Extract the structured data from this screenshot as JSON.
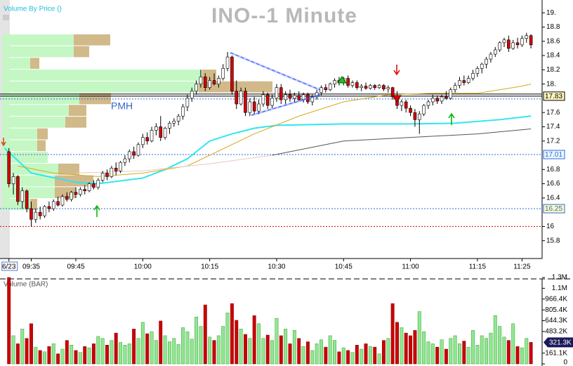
{
  "chart_data": [
    {
      "type": "candlestick",
      "title": "INO--1 Minute",
      "indicator_label": "Volume By Price ()",
      "annotation": "PMH",
      "up_color": "#ffffff",
      "down_color": "#d40000",
      "xlim": [
        -2,
        119.5
      ],
      "ylim": [
        15.55,
        19.18
      ],
      "xticks": [
        {
          "value": 0,
          "label": "6/23"
        },
        {
          "value": 5,
          "label": "09:35"
        },
        {
          "value": 15,
          "label": "09:45"
        },
        {
          "value": 30,
          "label": "10:00"
        },
        {
          "value": 45,
          "label": "10:15"
        },
        {
          "value": 60,
          "label": "10:30"
        },
        {
          "value": 75,
          "label": "10:45"
        },
        {
          "value": 90,
          "label": "11:00"
        },
        {
          "value": 105,
          "label": "11:15"
        },
        {
          "value": 115,
          "label": "11:25"
        }
      ],
      "yticks": [
        {
          "value": 19,
          "label": "19."
        },
        18.8,
        18.6,
        18.4,
        18.2,
        {
          "value": 18,
          "label": "18."
        },
        17.6,
        17.4,
        17.2,
        16.8,
        16.6,
        16.4,
        16,
        15.8
      ],
      "levels": [
        {
          "value": 17.83,
          "label": "17.83",
          "color": "#000000",
          "dash": "none",
          "fill": "#fff8c0"
        },
        {
          "value": 17.86,
          "color": "#000000",
          "dash": "none"
        },
        {
          "value": 17.79,
          "color": "#2a6fd6",
          "dash": "2,2"
        },
        {
          "value": 17.01,
          "label": "17.01",
          "color": "#2a6fd6",
          "dash": "2,2",
          "fill": "#eef4ff"
        },
        {
          "value": 16.25,
          "label": "16.25",
          "color": "#2a6fd6",
          "dash": "2,2",
          "fill": "#fff8c0"
        },
        {
          "value": 16.0,
          "color": "#d40000",
          "dash": "2,2"
        }
      ],
      "volume_by_price": {
        "levels": [
          18.62,
          18.455,
          18.29,
          18.125,
          17.96,
          17.795,
          17.63,
          17.465,
          17.3,
          17.135,
          16.97,
          16.805,
          16.64,
          16.475,
          16.31
        ],
        "up": [
          102,
          102,
          40,
          285,
          280,
          110,
          95,
          90,
          50,
          50,
          65,
          80,
          75,
          75,
          40
        ],
        "down": [
          52,
          22,
          13,
          20,
          105,
          45,
          25,
          30,
          15,
          12,
          0,
          30,
          55,
          30,
          10
        ],
        "up_color": "#c4f7c4",
        "down_color": "#d2b98a"
      },
      "lines": [
        {
          "color": "#2ee6f0",
          "width": 2,
          "x": [
            -1,
            5,
            15,
            20,
            30,
            35,
            40,
            45,
            50,
            55,
            60,
            75,
            90,
            100,
            110,
            117
          ],
          "values": [
            17.1,
            16.75,
            16.62,
            16.6,
            16.68,
            16.8,
            16.95,
            17.2,
            17.3,
            17.38,
            17.42,
            17.44,
            17.44,
            17.45,
            17.5,
            17.55
          ]
        },
        {
          "color": "#d4aa20",
          "width": 1,
          "x": [
            2,
            10,
            20,
            30,
            40,
            45,
            55,
            65,
            75,
            85,
            95,
            105,
            115,
            117
          ],
          "values": [
            16.85,
            16.75,
            16.7,
            16.75,
            16.85,
            17.0,
            17.3,
            17.55,
            17.75,
            17.85,
            17.87,
            17.87,
            17.97,
            18.0
          ]
        },
        {
          "color": "#555555",
          "width": 1,
          "x": [
            59,
            75,
            90,
            105,
            117
          ],
          "values": [
            17.0,
            17.2,
            17.25,
            17.3,
            17.37
          ]
        },
        {
          "color": "#e8c8c0",
          "width": 1,
          "x": [
            15,
            30,
            45,
            59
          ],
          "values": [
            16.75,
            16.78,
            16.88,
            17.0
          ]
        }
      ],
      "x": [
        0,
        1,
        2,
        3,
        4,
        5,
        6,
        7,
        8,
        9,
        10,
        11,
        12,
        13,
        14,
        15,
        16,
        17,
        18,
        19,
        20,
        21,
        22,
        23,
        24,
        25,
        26,
        27,
        28,
        29,
        30,
        31,
        32,
        33,
        34,
        35,
        36,
        37,
        38,
        39,
        40,
        41,
        42,
        43,
        44,
        45,
        46,
        47,
        48,
        49,
        50,
        51,
        52,
        53,
        54,
        55,
        56,
        57,
        58,
        59,
        60,
        61,
        62,
        63,
        64,
        65,
        66,
        67,
        68,
        69,
        70,
        71,
        72,
        73,
        74,
        75,
        76,
        77,
        78,
        79,
        80,
        81,
        82,
        83,
        84,
        85,
        86,
        87,
        88,
        89,
        90,
        91,
        92,
        93,
        94,
        95,
        96,
        97,
        98,
        99,
        100,
        101,
        102,
        103,
        104,
        105,
        106,
        107,
        108,
        109,
        110,
        111,
        112,
        113,
        114,
        115,
        116,
        117
      ],
      "candles": [
        [
          17.05,
          17.1,
          16.55,
          16.6
        ],
        [
          16.6,
          16.75,
          16.45,
          16.7
        ],
        [
          16.7,
          16.72,
          16.3,
          16.35
        ],
        [
          16.35,
          16.55,
          16.25,
          16.5
        ],
        [
          16.5,
          16.52,
          16.2,
          16.25
        ],
        [
          16.25,
          16.35,
          16.0,
          16.1
        ],
        [
          16.1,
          16.25,
          16.05,
          16.2
        ],
        [
          16.2,
          16.28,
          16.1,
          16.15
        ],
        [
          16.15,
          16.3,
          16.12,
          16.28
        ],
        [
          16.28,
          16.35,
          16.2,
          16.25
        ],
        [
          16.25,
          16.38,
          16.22,
          16.35
        ],
        [
          16.35,
          16.42,
          16.28,
          16.3
        ],
        [
          16.3,
          16.45,
          16.28,
          16.42
        ],
        [
          16.42,
          16.48,
          16.35,
          16.38
        ],
        [
          16.38,
          16.5,
          16.35,
          16.48
        ],
        [
          16.48,
          16.55,
          16.4,
          16.45
        ],
        [
          16.45,
          16.55,
          16.42,
          16.52
        ],
        [
          16.52,
          16.58,
          16.45,
          16.5
        ],
        [
          16.5,
          16.62,
          16.48,
          16.6
        ],
        [
          16.6,
          16.65,
          16.52,
          16.55
        ],
        [
          16.55,
          16.68,
          16.52,
          16.65
        ],
        [
          16.65,
          16.78,
          16.62,
          16.75
        ],
        [
          16.75,
          16.8,
          16.65,
          16.7
        ],
        [
          16.7,
          16.85,
          16.68,
          16.82
        ],
        [
          16.82,
          16.9,
          16.72,
          16.78
        ],
        [
          16.78,
          16.92,
          16.75,
          16.9
        ],
        [
          16.9,
          17.0,
          16.85,
          16.95
        ],
        [
          16.95,
          17.08,
          16.9,
          17.05
        ],
        [
          17.05,
          17.12,
          16.95,
          17.0
        ],
        [
          17.0,
          17.18,
          16.98,
          17.15
        ],
        [
          17.15,
          17.3,
          17.1,
          17.25
        ],
        [
          17.25,
          17.32,
          17.15,
          17.2
        ],
        [
          17.2,
          17.4,
          17.18,
          17.35
        ],
        [
          17.35,
          17.45,
          17.28,
          17.4
        ],
        [
          17.4,
          17.55,
          17.2,
          17.25
        ],
        [
          17.25,
          17.4,
          17.22,
          17.38
        ],
        [
          17.38,
          17.48,
          17.3,
          17.45
        ],
        [
          17.45,
          17.52,
          17.4,
          17.48
        ],
        [
          17.48,
          17.58,
          17.42,
          17.55
        ],
        [
          17.55,
          17.72,
          17.5,
          17.68
        ],
        [
          17.68,
          17.85,
          17.62,
          17.8
        ],
        [
          17.8,
          17.95,
          17.75,
          17.9
        ],
        [
          17.9,
          18.05,
          17.85,
          18.0
        ],
        [
          18.0,
          18.2,
          17.95,
          18.1
        ],
        [
          18.1,
          18.15,
          17.9,
          17.95
        ],
        [
          17.95,
          18.1,
          17.92,
          18.05
        ],
        [
          18.05,
          18.15,
          17.98,
          18.0
        ],
        [
          18.0,
          18.12,
          17.95,
          18.08
        ],
        [
          18.08,
          18.28,
          18.05,
          18.22
        ],
        [
          18.22,
          18.45,
          18.18,
          18.38
        ],
        [
          18.38,
          18.4,
          17.85,
          17.9
        ],
        [
          17.9,
          18.05,
          17.65,
          17.72
        ],
        [
          17.72,
          17.95,
          17.7,
          17.9
        ],
        [
          17.9,
          17.95,
          17.55,
          17.6
        ],
        [
          17.6,
          17.8,
          17.55,
          17.75
        ],
        [
          17.75,
          17.82,
          17.58,
          17.62
        ],
        [
          17.62,
          17.78,
          17.58,
          17.72
        ],
        [
          17.72,
          17.9,
          17.68,
          17.85
        ],
        [
          17.85,
          17.88,
          17.65,
          17.7
        ],
        [
          17.7,
          17.85,
          17.66,
          17.8
        ],
        [
          17.8,
          18.0,
          17.75,
          17.95
        ],
        [
          17.95,
          18.0,
          17.72,
          17.78
        ],
        [
          17.78,
          17.9,
          17.72,
          17.85
        ],
        [
          17.85,
          17.92,
          17.75,
          17.8
        ],
        [
          17.8,
          17.88,
          17.74,
          17.84
        ],
        [
          17.84,
          17.9,
          17.76,
          17.78
        ],
        [
          17.78,
          17.88,
          17.74,
          17.85
        ],
        [
          17.85,
          17.88,
          17.72,
          17.75
        ],
        [
          17.75,
          17.85,
          17.7,
          17.82
        ],
        [
          17.82,
          17.92,
          17.78,
          17.88
        ],
        [
          17.88,
          17.98,
          17.84,
          17.95
        ],
        [
          17.95,
          18.0,
          17.88,
          17.92
        ],
        [
          17.92,
          18.02,
          17.9,
          18.0
        ],
        [
          18.0,
          18.08,
          17.95,
          18.05
        ],
        [
          18.05,
          18.1,
          17.98,
          18.02
        ],
        [
          18.02,
          18.1,
          17.98,
          18.08
        ],
        [
          18.08,
          18.12,
          17.95,
          17.98
        ],
        [
          17.98,
          18.05,
          17.95,
          18.02
        ],
        [
          18.02,
          18.05,
          17.92,
          17.95
        ],
        [
          17.95,
          18.0,
          17.9,
          17.97
        ],
        [
          17.97,
          18.02,
          17.92,
          17.94
        ],
        [
          17.94,
          18.0,
          17.92,
          17.98
        ],
        [
          17.98,
          18.0,
          17.92,
          17.95
        ],
        [
          17.95,
          18.0,
          17.93,
          17.98
        ],
        [
          17.98,
          18.0,
          17.9,
          17.93
        ],
        [
          17.93,
          17.98,
          17.88,
          17.95
        ],
        [
          17.95,
          17.96,
          17.78,
          17.82
        ],
        [
          17.82,
          17.9,
          17.65,
          17.7
        ],
        [
          17.7,
          17.78,
          17.62,
          17.75
        ],
        [
          17.75,
          17.78,
          17.6,
          17.66
        ],
        [
          17.66,
          17.7,
          17.55,
          17.6
        ],
        [
          17.6,
          17.65,
          17.4,
          17.5
        ],
        [
          17.5,
          17.62,
          17.3,
          17.58
        ],
        [
          17.58,
          17.72,
          17.55,
          17.7
        ],
        [
          17.7,
          17.78,
          17.65,
          17.75
        ],
        [
          17.75,
          17.85,
          17.7,
          17.8
        ],
        [
          17.8,
          17.84,
          17.72,
          17.76
        ],
        [
          17.76,
          17.85,
          17.72,
          17.82
        ],
        [
          17.82,
          17.9,
          17.78,
          17.8
        ],
        [
          17.8,
          17.95,
          17.78,
          17.92
        ],
        [
          17.92,
          18.02,
          17.88,
          17.98
        ],
        [
          17.98,
          18.1,
          17.94,
          18.05
        ],
        [
          18.05,
          18.12,
          17.98,
          18.02
        ],
        [
          18.02,
          18.12,
          18.0,
          18.08
        ],
        [
          18.08,
          18.2,
          18.05,
          18.15
        ],
        [
          18.15,
          18.25,
          18.1,
          18.22
        ],
        [
          18.22,
          18.3,
          18.15,
          18.28
        ],
        [
          18.28,
          18.38,
          18.22,
          18.35
        ],
        [
          18.35,
          18.45,
          18.3,
          18.42
        ],
        [
          18.42,
          18.52,
          18.38,
          18.48
        ],
        [
          18.48,
          18.6,
          18.45,
          18.58
        ],
        [
          18.58,
          18.65,
          18.52,
          18.62
        ],
        [
          18.62,
          18.68,
          18.45,
          18.5
        ],
        [
          18.5,
          18.62,
          18.48,
          18.58
        ],
        [
          18.58,
          18.65,
          18.5,
          18.55
        ],
        [
          18.55,
          18.68,
          18.52,
          18.64
        ],
        [
          18.64,
          18.72,
          18.58,
          18.68
        ],
        [
          18.68,
          18.7,
          18.5,
          18.55
        ]
      ]
    },
    {
      "type": "bar",
      "title": "Volume (BAR)",
      "up_color": "#8fe88f",
      "down_color": "#cc0000",
      "ylim": [
        0,
        1288.6
      ],
      "yticks": [
        {
          "value": 1288.6,
          "label": "1.3M"
        },
        {
          "value": 1127.5,
          "label": "1.1M"
        },
        {
          "value": 966.4,
          "label": "966.4K"
        },
        {
          "value": 805.4,
          "label": "805.4K"
        },
        {
          "value": 644.3,
          "label": "644.3K"
        },
        {
          "value": 483.2,
          "label": "483.2K"
        },
        {
          "value": 161.1,
          "label": "161.1K"
        },
        0
      ],
      "marker": {
        "value": 321.3,
        "label": "321.3K"
      },
      "values": [
        1290,
        420,
        300,
        520,
        380,
        600,
        250,
        200,
        180,
        260,
        300,
        150,
        220,
        350,
        280,
        200,
        170,
        260,
        240,
        300,
        410,
        380,
        280,
        350,
        460,
        320,
        280,
        300,
        520,
        380,
        620,
        450,
        480,
        350,
        640,
        420,
        330,
        380,
        290,
        540,
        480,
        370,
        700,
        560,
        880,
        400,
        350,
        420,
        560,
        760,
        900,
        650,
        520,
        440,
        380,
        720,
        600,
        380,
        430,
        350,
        680,
        420,
        520,
        300,
        500,
        380,
        260,
        330,
        200,
        300,
        360,
        250,
        420,
        350,
        180,
        240,
        200,
        170,
        280,
        220,
        300,
        260,
        250,
        150,
        350,
        380,
        900,
        620,
        540,
        460,
        420,
        500,
        780,
        480,
        330,
        300,
        250,
        360,
        220,
        380,
        420,
        300,
        340,
        250,
        500,
        280,
        420,
        380,
        460,
        720,
        560,
        400,
        350,
        600,
        260,
        240,
        380,
        321.3
      ]
    }
  ]
}
